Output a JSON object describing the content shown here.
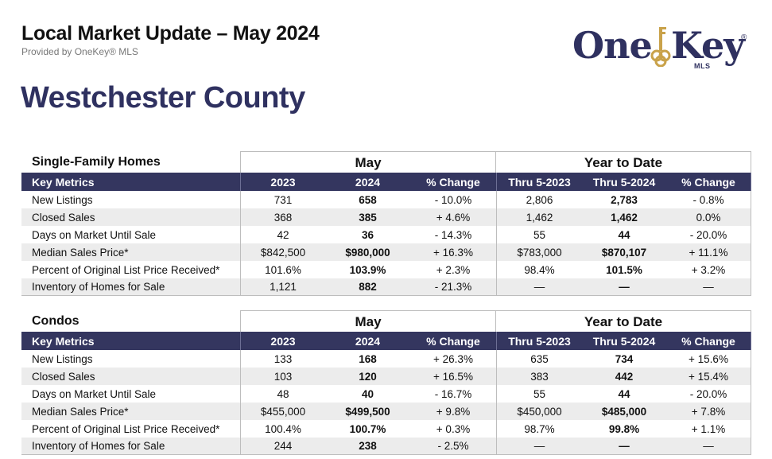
{
  "header": {
    "title": "Local Market Update – May 2024",
    "provider": "Provided by OneKey® MLS"
  },
  "logo": {
    "one": "One",
    "key": "Key",
    "reg": "®",
    "mls": "MLS"
  },
  "county": "Westchester County",
  "colors": {
    "navy": "#34365f",
    "gold": "#c9a24a",
    "row_alt": "#ececec"
  },
  "sections": [
    {
      "category": "Single-Family Homes",
      "group_may": "May",
      "group_ytd": "Year to Date",
      "headers": [
        "Key Metrics",
        "2023",
        "2024",
        "% Change",
        "Thru 5-2023",
        "Thru 5-2024",
        "% Change"
      ],
      "rows": [
        [
          "New Listings",
          "731",
          "658",
          "- 10.0%",
          "2,806",
          "2,783",
          "- 0.8%"
        ],
        [
          "Closed Sales",
          "368",
          "385",
          "+ 4.6%",
          "1,462",
          "1,462",
          "0.0%"
        ],
        [
          "Days on Market Until Sale",
          "42",
          "36",
          "- 14.3%",
          "55",
          "44",
          "- 20.0%"
        ],
        [
          "Median Sales Price*",
          "$842,500",
          "$980,000",
          "+ 16.3%",
          "$783,000",
          "$870,107",
          "+ 11.1%"
        ],
        [
          "Percent of Original List Price Received*",
          "101.6%",
          "103.9%",
          "+ 2.3%",
          "98.4%",
          "101.5%",
          "+ 3.2%"
        ],
        [
          "Inventory of Homes for Sale",
          "1,121",
          "882",
          "- 21.3%",
          "—",
          "—",
          "—"
        ]
      ]
    },
    {
      "category": "Condos",
      "group_may": "May",
      "group_ytd": "Year to Date",
      "headers": [
        "Key Metrics",
        "2023",
        "2024",
        "% Change",
        "Thru 5-2023",
        "Thru 5-2024",
        "% Change"
      ],
      "rows": [
        [
          "New Listings",
          "133",
          "168",
          "+ 26.3%",
          "635",
          "734",
          "+ 15.6%"
        ],
        [
          "Closed Sales",
          "103",
          "120",
          "+ 16.5%",
          "383",
          "442",
          "+ 15.4%"
        ],
        [
          "Days on Market Until Sale",
          "48",
          "40",
          "- 16.7%",
          "55",
          "44",
          "- 20.0%"
        ],
        [
          "Median Sales Price*",
          "$455,000",
          "$499,500",
          "+ 9.8%",
          "$450,000",
          "$485,000",
          "+ 7.8%"
        ],
        [
          "Percent of Original List Price Received*",
          "100.4%",
          "100.7%",
          "+ 0.3%",
          "98.7%",
          "99.8%",
          "+ 1.1%"
        ],
        [
          "Inventory of Homes for Sale",
          "244",
          "238",
          "- 2.5%",
          "—",
          "—",
          "—"
        ]
      ]
    }
  ]
}
